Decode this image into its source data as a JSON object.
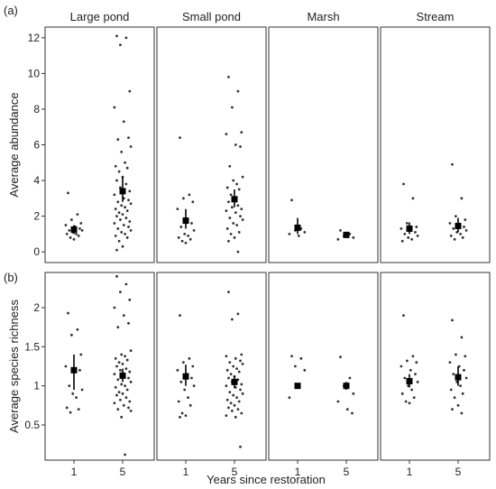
{
  "xlabel": "Years since restoration",
  "x_ticks": [
    "1",
    "5"
  ],
  "facets": [
    "Large pond",
    "Small pond",
    "Marsh",
    "Stream"
  ],
  "colors": {
    "point": "#333333",
    "mean": "#000000",
    "panel_border": "#333333"
  },
  "chart_data": [
    {
      "type": "scatter",
      "panel_label": "(a)",
      "ylabel": "Average abundance",
      "ylim": [
        -0.6,
        12.6
      ],
      "y_ticks": [
        "0",
        "2",
        "4",
        "6",
        "8",
        "10",
        "12"
      ],
      "y_tick_values": [
        0,
        2,
        4,
        6,
        8,
        10,
        12
      ],
      "facets": [
        {
          "name": "Large pond",
          "groups": [
            {
              "x": "1",
              "mean": 1.25,
              "lower": 1.0,
              "upper": 1.5,
              "points": [
                3.3,
                2.1,
                1.8,
                1.6,
                1.5,
                1.4,
                1.3,
                1.2,
                1.2,
                1.1,
                1.0,
                1.0,
                0.9,
                0.8,
                0.7
              ]
            },
            {
              "x": "5",
              "mean": 3.4,
              "lower": 2.8,
              "upper": 4.2,
              "points": [
                12.1,
                12.0,
                11.6,
                9.0,
                8.1,
                7.3,
                6.4,
                6.3,
                5.9,
                5.6,
                5.0,
                4.8,
                4.7,
                4.5,
                4.2,
                4.0,
                3.8,
                3.6,
                3.4,
                3.2,
                3.0,
                2.9,
                2.8,
                2.7,
                2.6,
                2.5,
                2.4,
                2.3,
                2.2,
                2.1,
                2.0,
                1.9,
                1.8,
                1.7,
                1.6,
                1.5,
                1.4,
                1.3,
                1.2,
                1.1,
                1.0,
                0.9,
                0.8,
                0.6,
                0.3,
                0.1
              ]
            }
          ]
        },
        {
          "name": "Small pond",
          "groups": [
            {
              "x": "1",
              "mean": 1.75,
              "lower": 1.3,
              "upper": 2.4,
              "points": [
                6.4,
                3.2,
                3.0,
                2.8,
                2.4,
                1.8,
                1.6,
                1.4,
                1.2,
                1.0,
                0.9,
                0.8,
                0.7,
                0.6,
                0.5
              ]
            },
            {
              "x": "5",
              "mean": 2.95,
              "lower": 2.5,
              "upper": 3.5,
              "points": [
                9.8,
                9.0,
                8.1,
                6.7,
                6.6,
                6.0,
                5.9,
                4.8,
                4.2,
                4.0,
                3.8,
                3.6,
                3.5,
                3.2,
                3.0,
                2.8,
                2.6,
                2.5,
                2.4,
                2.3,
                2.2,
                2.0,
                1.9,
                1.8,
                1.6,
                1.5,
                1.3,
                1.1,
                1.0,
                0.8,
                0.6,
                0.0
              ]
            }
          ]
        },
        {
          "name": "Marsh",
          "groups": [
            {
              "x": "1",
              "mean": 1.35,
              "lower": 1.0,
              "upper": 1.9,
              "points": [
                2.9,
                1.3,
                1.2,
                1.1,
                1.0,
                0.9
              ]
            },
            {
              "x": "5",
              "mean": 0.95,
              "lower": 0.85,
              "upper": 1.05,
              "points": [
                1.2,
                1.0,
                0.9,
                0.8,
                0.7
              ]
            }
          ]
        },
        {
          "name": "Stream",
          "groups": [
            {
              "x": "1",
              "mean": 1.3,
              "lower": 1.0,
              "upper": 1.65,
              "points": [
                3.8,
                3.0,
                1.6,
                1.4,
                1.3,
                1.2,
                1.1,
                1.0,
                0.9,
                0.8,
                0.7,
                0.6
              ]
            },
            {
              "x": "5",
              "mean": 1.45,
              "lower": 1.1,
              "upper": 1.9,
              "points": [
                4.9,
                3.0,
                2.0,
                1.8,
                1.6,
                1.5,
                1.4,
                1.3,
                1.2,
                1.1,
                1.0,
                0.9,
                0.8,
                0.7
              ]
            }
          ]
        }
      ]
    },
    {
      "type": "scatter",
      "panel_label": "(b)",
      "ylabel": "Average species richness",
      "ylim": [
        0.05,
        2.45
      ],
      "y_ticks": [
        "0.5",
        "1",
        "1.5",
        "2"
      ],
      "y_tick_values": [
        0.5,
        1.0,
        1.5,
        2.0
      ],
      "facets": [
        {
          "name": "Large pond",
          "groups": [
            {
              "x": "1",
              "mean": 1.2,
              "lower": 0.95,
              "upper": 1.4,
              "points": [
                1.93,
                1.72,
                1.65,
                1.4,
                1.25,
                1.2,
                1.2,
                1.0,
                0.95,
                0.9,
                0.85,
                0.72,
                0.7,
                0.66
              ]
            },
            {
              "x": "5",
              "mean": 1.13,
              "lower": 1.05,
              "upper": 1.22,
              "points": [
                2.4,
                2.3,
                2.2,
                2.1,
                2.0,
                1.9,
                1.8,
                1.75,
                1.45,
                1.4,
                1.38,
                1.35,
                1.33,
                1.3,
                1.28,
                1.25,
                1.22,
                1.2,
                1.18,
                1.15,
                1.12,
                1.1,
                1.08,
                1.05,
                1.02,
                1.0,
                0.98,
                0.95,
                0.92,
                0.9,
                0.88,
                0.85,
                0.82,
                0.8,
                0.78,
                0.75,
                0.72,
                0.7,
                0.68,
                0.6,
                0.12
              ]
            }
          ]
        },
        {
          "name": "Small pond",
          "groups": [
            {
              "x": "1",
              "mean": 1.12,
              "lower": 1.0,
              "upper": 1.27,
              "points": [
                1.9,
                1.35,
                1.3,
                1.25,
                1.2,
                1.15,
                1.1,
                1.05,
                1.0,
                0.95,
                0.85,
                0.8,
                0.75,
                0.65,
                0.62,
                0.6
              ]
            },
            {
              "x": "5",
              "mean": 1.05,
              "lower": 0.97,
              "upper": 1.13,
              "points": [
                2.2,
                1.92,
                1.85,
                1.4,
                1.38,
                1.35,
                1.32,
                1.3,
                1.28,
                1.25,
                1.22,
                1.2,
                1.18,
                1.15,
                1.12,
                1.1,
                1.08,
                1.05,
                1.02,
                1.0,
                0.98,
                0.95,
                0.92,
                0.9,
                0.88,
                0.85,
                0.82,
                0.8,
                0.78,
                0.75,
                0.72,
                0.7,
                0.68,
                0.65,
                0.62,
                0.6,
                0.22
              ]
            }
          ]
        },
        {
          "name": "Marsh",
          "groups": [
            {
              "x": "1",
              "mean": 1.0,
              "lower": 1.0,
              "upper": 1.0,
              "points": [
                1.38,
                1.35,
                1.25,
                1.2,
                0.85
              ]
            },
            {
              "x": "5",
              "mean": 1.0,
              "lower": 0.95,
              "upper": 1.05,
              "points": [
                1.37,
                1.1,
                1.0,
                0.9,
                0.8,
                0.7,
                0.65
              ]
            }
          ]
        },
        {
          "name": "Stream",
          "groups": [
            {
              "x": "1",
              "mean": 1.06,
              "lower": 0.98,
              "upper": 1.15,
              "points": [
                1.9,
                1.38,
                1.32,
                1.3,
                1.25,
                1.2,
                1.15,
                1.1,
                1.05,
                1.0,
                0.95,
                0.9,
                0.85,
                0.8,
                0.78
              ]
            },
            {
              "x": "5",
              "mean": 1.11,
              "lower": 1.0,
              "upper": 1.25,
              "points": [
                1.84,
                1.62,
                1.4,
                1.38,
                1.3,
                1.25,
                1.2,
                1.15,
                1.1,
                1.05,
                1.0,
                0.95,
                0.9,
                0.85,
                0.75,
                0.7,
                0.65
              ]
            }
          ]
        }
      ]
    }
  ]
}
